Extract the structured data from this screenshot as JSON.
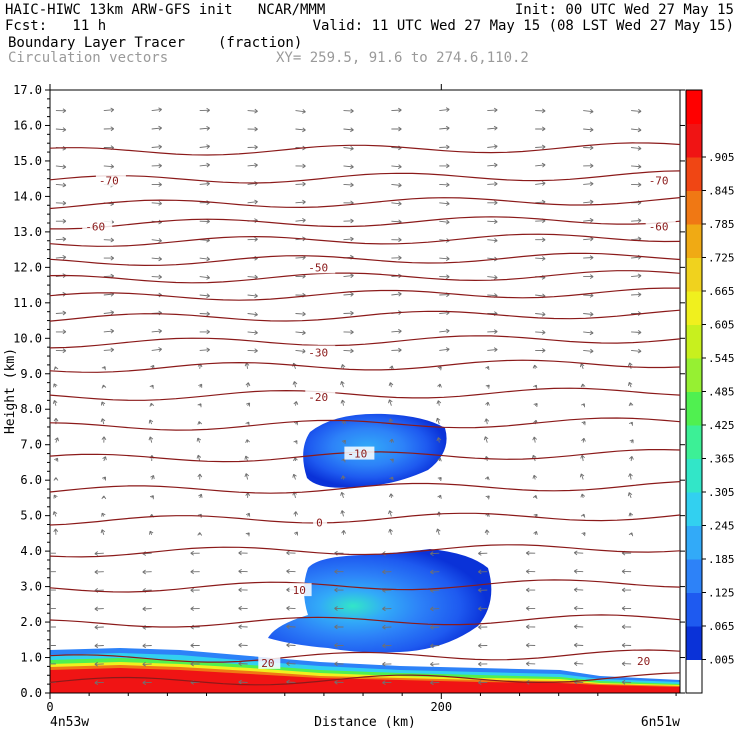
{
  "header": {
    "line1_left": "HAIC-HIWC 13km ARW-GFS init   NCAR/MMM",
    "line1_right": "Init: 00 UTC Wed 27 May 15",
    "line2_left": "Fcst:   11 h",
    "line2_right": "Valid: 11 UTC Wed 27 May 15 (08 LST Wed 27 May 15)",
    "field_name": "Boundary Layer Tracer",
    "field_units": "(fraction)",
    "vector_label": "Circulation vectors",
    "xy_label": "XY= 259.5, 91.6 to 274.6,110.2"
  },
  "chart_data": {
    "type": "heatmap",
    "ylabel": "Height (km)",
    "xlabel": "Distance (km)",
    "x_start_label": "4n53w",
    "x_end_label": "6n51w",
    "x_ticks": [
      0,
      200
    ],
    "xlim": [
      0,
      322
    ],
    "ylim": [
      0,
      17
    ],
    "y_ticks": [
      "0.0",
      "1.0",
      "2.0",
      "3.0",
      "4.0",
      "5.0",
      "6.0",
      "7.0",
      "8.0",
      "9.0",
      "10.0",
      "11.0",
      "12.0",
      "13.0",
      "14.0",
      "15.0",
      "16.0",
      "17.0"
    ],
    "colorbar_labels": [
      ".005",
      ".065",
      ".125",
      ".185",
      ".245",
      ".305",
      ".365",
      ".425",
      ".485",
      ".545",
      ".605",
      ".665",
      ".725",
      ".785",
      ".845",
      ".905"
    ],
    "colorbar_colors": [
      "#ffffff",
      "#0a32d8",
      "#1e5af0",
      "#2d82f8",
      "#32aaf8",
      "#32d0f0",
      "#32e6c8",
      "#3cf096",
      "#50f050",
      "#96f032",
      "#c8f01e",
      "#f0f01e",
      "#f0d21e",
      "#f0aa14",
      "#f07814",
      "#f04614",
      "#f01414",
      "#ff0000"
    ],
    "isotherm_labels": [
      {
        "text": "-70",
        "x": 25,
        "y": 14.45
      },
      {
        "text": "-70",
        "x": 306,
        "y": 14.45
      },
      {
        "text": "-60",
        "x": 18,
        "y": 13.15
      },
      {
        "text": "-60",
        "x": 306,
        "y": 13.15
      },
      {
        "text": "-50",
        "x": 132,
        "y": 12.0
      },
      {
        "text": "-30",
        "x": 132,
        "y": 9.6
      },
      {
        "text": "-20",
        "x": 132,
        "y": 8.35
      },
      {
        "text": "-10",
        "x": 152,
        "y": 6.75
      },
      {
        "text": "0",
        "x": 136,
        "y": 4.8
      },
      {
        "text": "10",
        "x": 124,
        "y": 2.9
      },
      {
        "text": "20",
        "x": 108,
        "y": 0.85
      },
      {
        "text": "20",
        "x": 300,
        "y": 0.9
      }
    ]
  }
}
